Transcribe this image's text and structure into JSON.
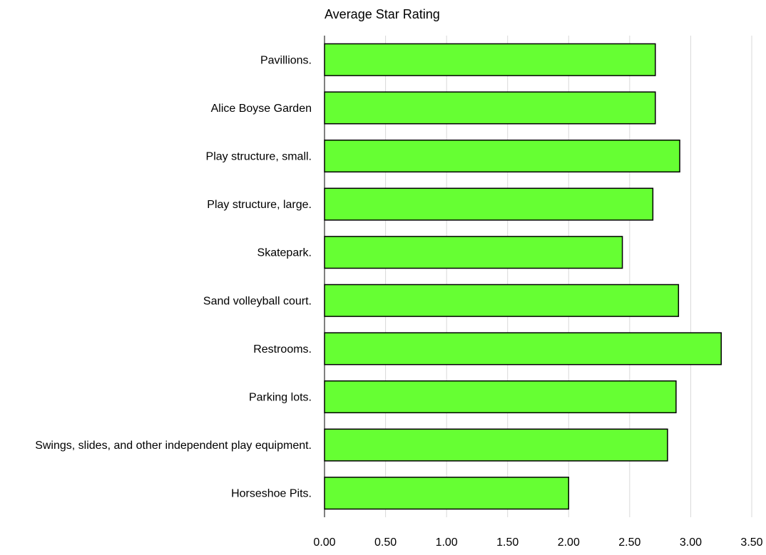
{
  "chart_data": {
    "type": "bar",
    "orientation": "horizontal",
    "title": "Average Star Rating",
    "xlabel": "",
    "ylabel": "",
    "categories": [
      "Pavillions.",
      "Alice Boyse Garden",
      "Play structure, small.",
      "Play structure, large.",
      "Skatepark.",
      "Sand volleyball court.",
      "Restrooms.",
      "Parking lots.",
      "Swings, slides, and other independent play equipment.",
      "Horseshoe Pits."
    ],
    "values": [
      2.71,
      2.71,
      2.91,
      2.69,
      2.44,
      2.9,
      3.25,
      2.88,
      2.81,
      2.0
    ],
    "xlim": [
      0,
      3.5
    ],
    "x_ticks": [
      "0.00",
      "0.50",
      "1.00",
      "1.50",
      "2.00",
      "2.50",
      "3.00",
      "3.50"
    ],
    "grid": "vertical",
    "legend": "none",
    "colors": {
      "bar_fill": "#66ff33",
      "bar_stroke": "#000000",
      "grid": "#d9d9d9",
      "axis": "#000000"
    }
  }
}
